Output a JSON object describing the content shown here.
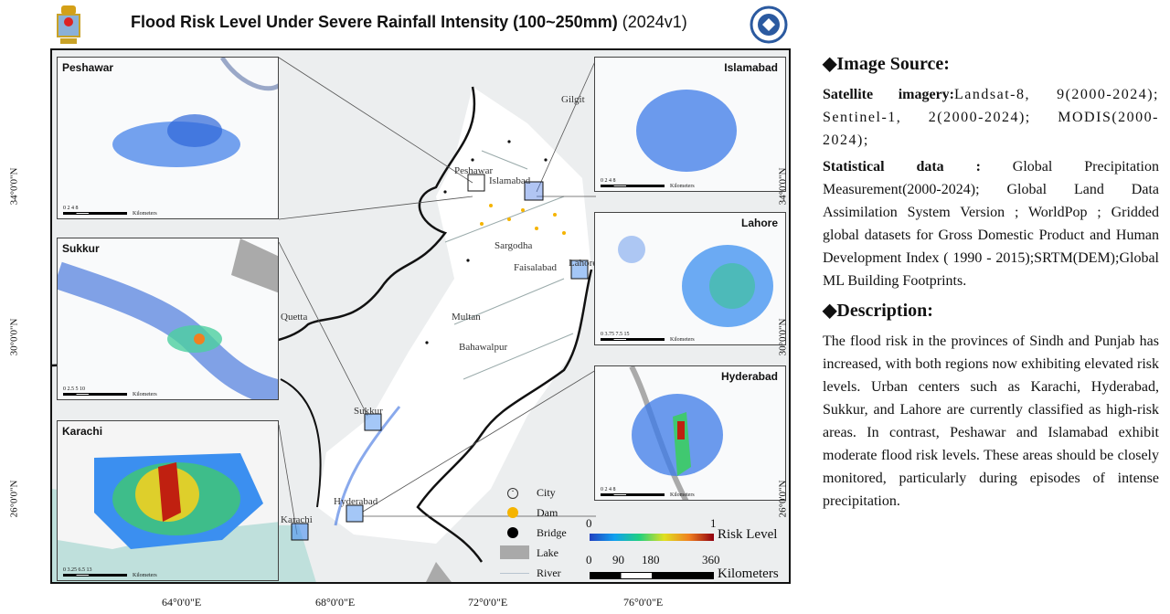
{
  "header": {
    "title": "Flood Risk Level Under Severe Rainfall Intensity (100~250mm)",
    "version": "(2024v1)"
  },
  "map": {
    "lat_ticks": [
      "34°0'0\"N",
      "30°0'0\"N",
      "26°0'0\"N"
    ],
    "lon_ticks": [
      "64°0'0\"E",
      "68°0'0\"E",
      "72°0'0\"E",
      "76°0'0\"E"
    ],
    "cities": [
      "Gilgit",
      "Peshawar",
      "Islamabad",
      "Sargodha",
      "Faisalabad",
      "Lahore",
      "Quetta",
      "Multan",
      "Bahawalpur",
      "Sukkur",
      "Hyderabad",
      "Karachi"
    ],
    "insets": [
      {
        "name": "Peshawar",
        "scale": [
          "0",
          "2",
          "4",
          "8"
        ],
        "unit": "Kilometers"
      },
      {
        "name": "Sukkur",
        "scale": [
          "0",
          "2.5",
          "5",
          "10"
        ],
        "unit": "Kilometers"
      },
      {
        "name": "Karachi",
        "scale": [
          "0",
          "3.25",
          "6.5",
          "13"
        ],
        "unit": "Kilometers"
      },
      {
        "name": "Islamabad",
        "scale": [
          "0",
          "2",
          "4",
          "8"
        ],
        "unit": "Kilometers"
      },
      {
        "name": "Lahore",
        "scale": [
          "0",
          "3.75",
          "7.5",
          "15"
        ],
        "unit": "Kilometers"
      },
      {
        "name": "Hyderabad",
        "scale": [
          "0",
          "2",
          "4",
          "8"
        ],
        "unit": "Kilometers"
      }
    ],
    "legend": {
      "items": [
        "City",
        "Dam",
        "Bridge",
        "Lake",
        "River"
      ],
      "colors": {
        "dam": "#f5b400",
        "bridge": "#000000",
        "lake": "#a9a9a9",
        "river": "#b8c4d0"
      },
      "risk_min": "0",
      "risk_max": "1",
      "risk_label": "Risk Level",
      "scale_ticks": [
        "0",
        "90",
        "180",
        "360"
      ],
      "scale_unit": "Kilometers"
    }
  },
  "panel": {
    "source_heading": "◆Image Source:",
    "sat_label": "Satellite imagery:",
    "sat_text": "Landsat-8, 9(2000-2024); Sentinel-1, 2(2000-2024); MODIS(2000-2024);",
    "stat_label": "Statistical data :",
    "stat_text": "Global Precipitation Measurement(2000-2024); Global Land Data Assimilation System Version ; WorldPop ; Gridded global datasets for Gross Domestic Product and Human Development Index ( 1990 - 2015);SRTM(DEM);Global ML Building Footprints.",
    "desc_heading": "◆Description:",
    "desc_text": "The flood risk in the provinces of Sindh and Punjab has increased, with both regions now exhibiting elevated risk levels. Urban centers such as Karachi, Hyderabad, Sukkur, and Lahore are currently classified as high-risk areas. In contrast, Peshawar and Islamabad exhibit moderate flood risk levels. These areas should be closely monitored, particularly during episodes of intense precipitation."
  }
}
